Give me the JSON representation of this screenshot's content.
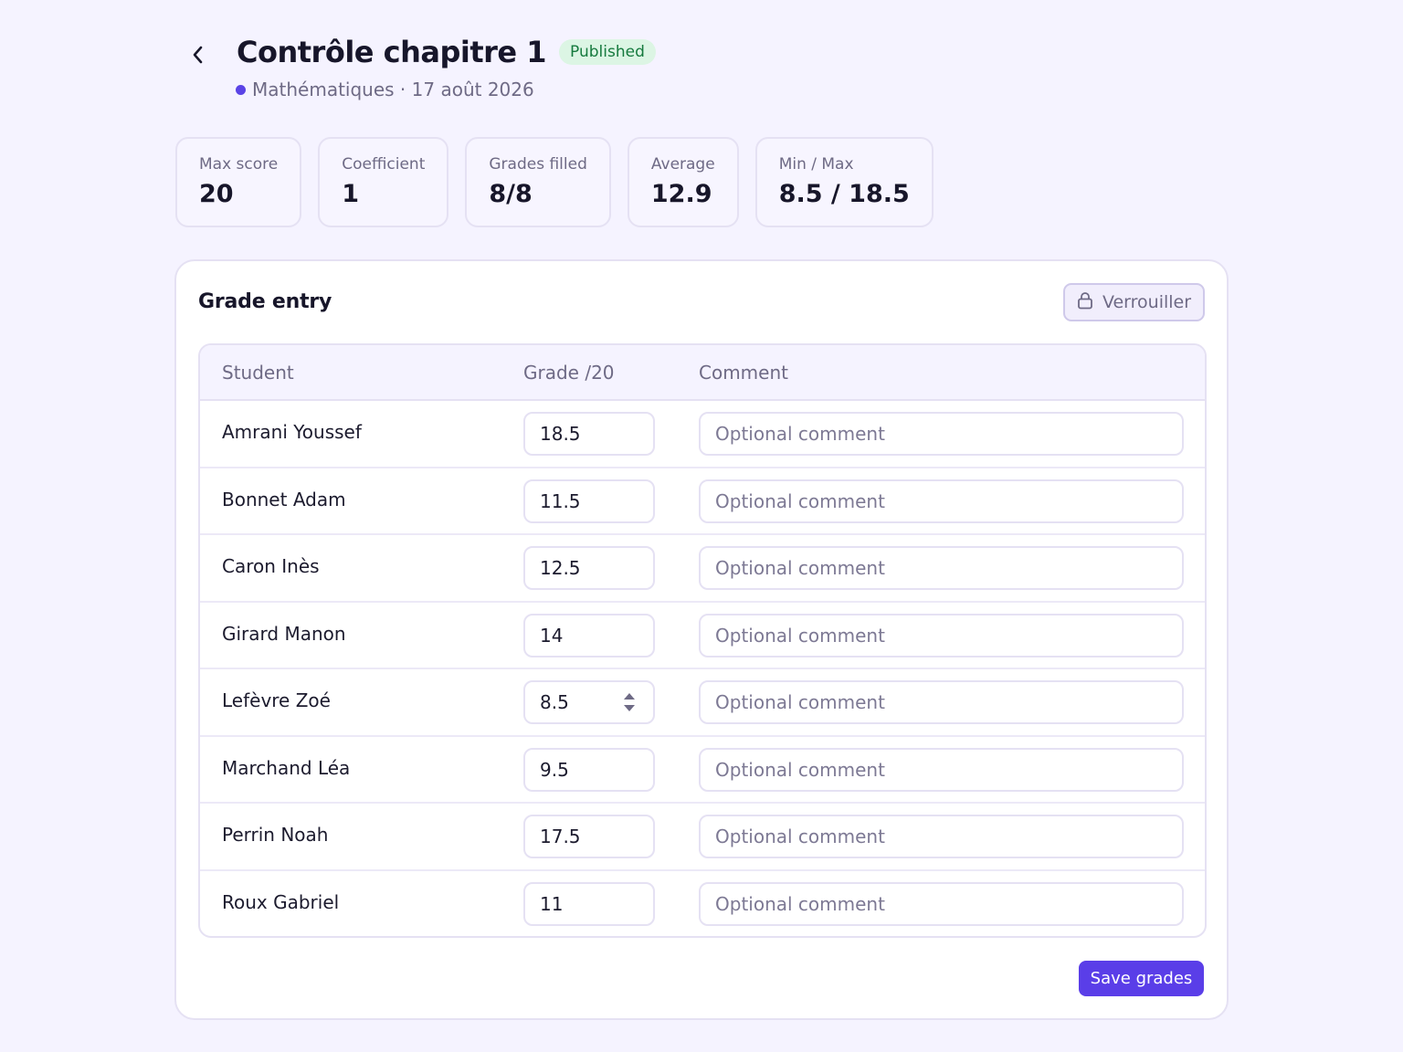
{
  "header": {
    "title": "Contrôle chapitre 1",
    "status_badge": "Published",
    "subject": "Mathématiques · 17 août 2026",
    "subject_color": "#5a43e6"
  },
  "stats": [
    {
      "label": "Max score",
      "value": "20"
    },
    {
      "label": "Coefficient",
      "value": "1"
    },
    {
      "label": "Grades filled",
      "value": "8/8"
    },
    {
      "label": "Average",
      "value": "12.9"
    },
    {
      "label": "Min / Max",
      "value": "8.5 / 18.5"
    }
  ],
  "grade_entry": {
    "title": "Grade entry",
    "lock_label": "Verrouiller",
    "columns": {
      "student": "Student",
      "grade": "Grade /20",
      "comment": "Comment"
    },
    "comment_placeholder": "Optional comment",
    "rows": [
      {
        "student": "Amrani Youssef",
        "grade": "18.5",
        "comment": ""
      },
      {
        "student": "Bonnet Adam",
        "grade": "11.5",
        "comment": ""
      },
      {
        "student": "Caron Inès",
        "grade": "12.5",
        "comment": ""
      },
      {
        "student": "Girard Manon",
        "grade": "14",
        "comment": ""
      },
      {
        "student": "Lefèvre Zoé",
        "grade": "8.5",
        "comment": ""
      },
      {
        "student": "Marchand Léa",
        "grade": "9.5",
        "comment": ""
      },
      {
        "student": "Perrin Noah",
        "grade": "17.5",
        "comment": ""
      },
      {
        "student": "Roux Gabriel",
        "grade": "11",
        "comment": ""
      }
    ],
    "save_label": "Save grades"
  },
  "colors": {
    "accent": "#5a3ee8",
    "badge_bg": "#dcf5e4",
    "badge_text": "#167a3e",
    "background": "#f5f3ff"
  }
}
